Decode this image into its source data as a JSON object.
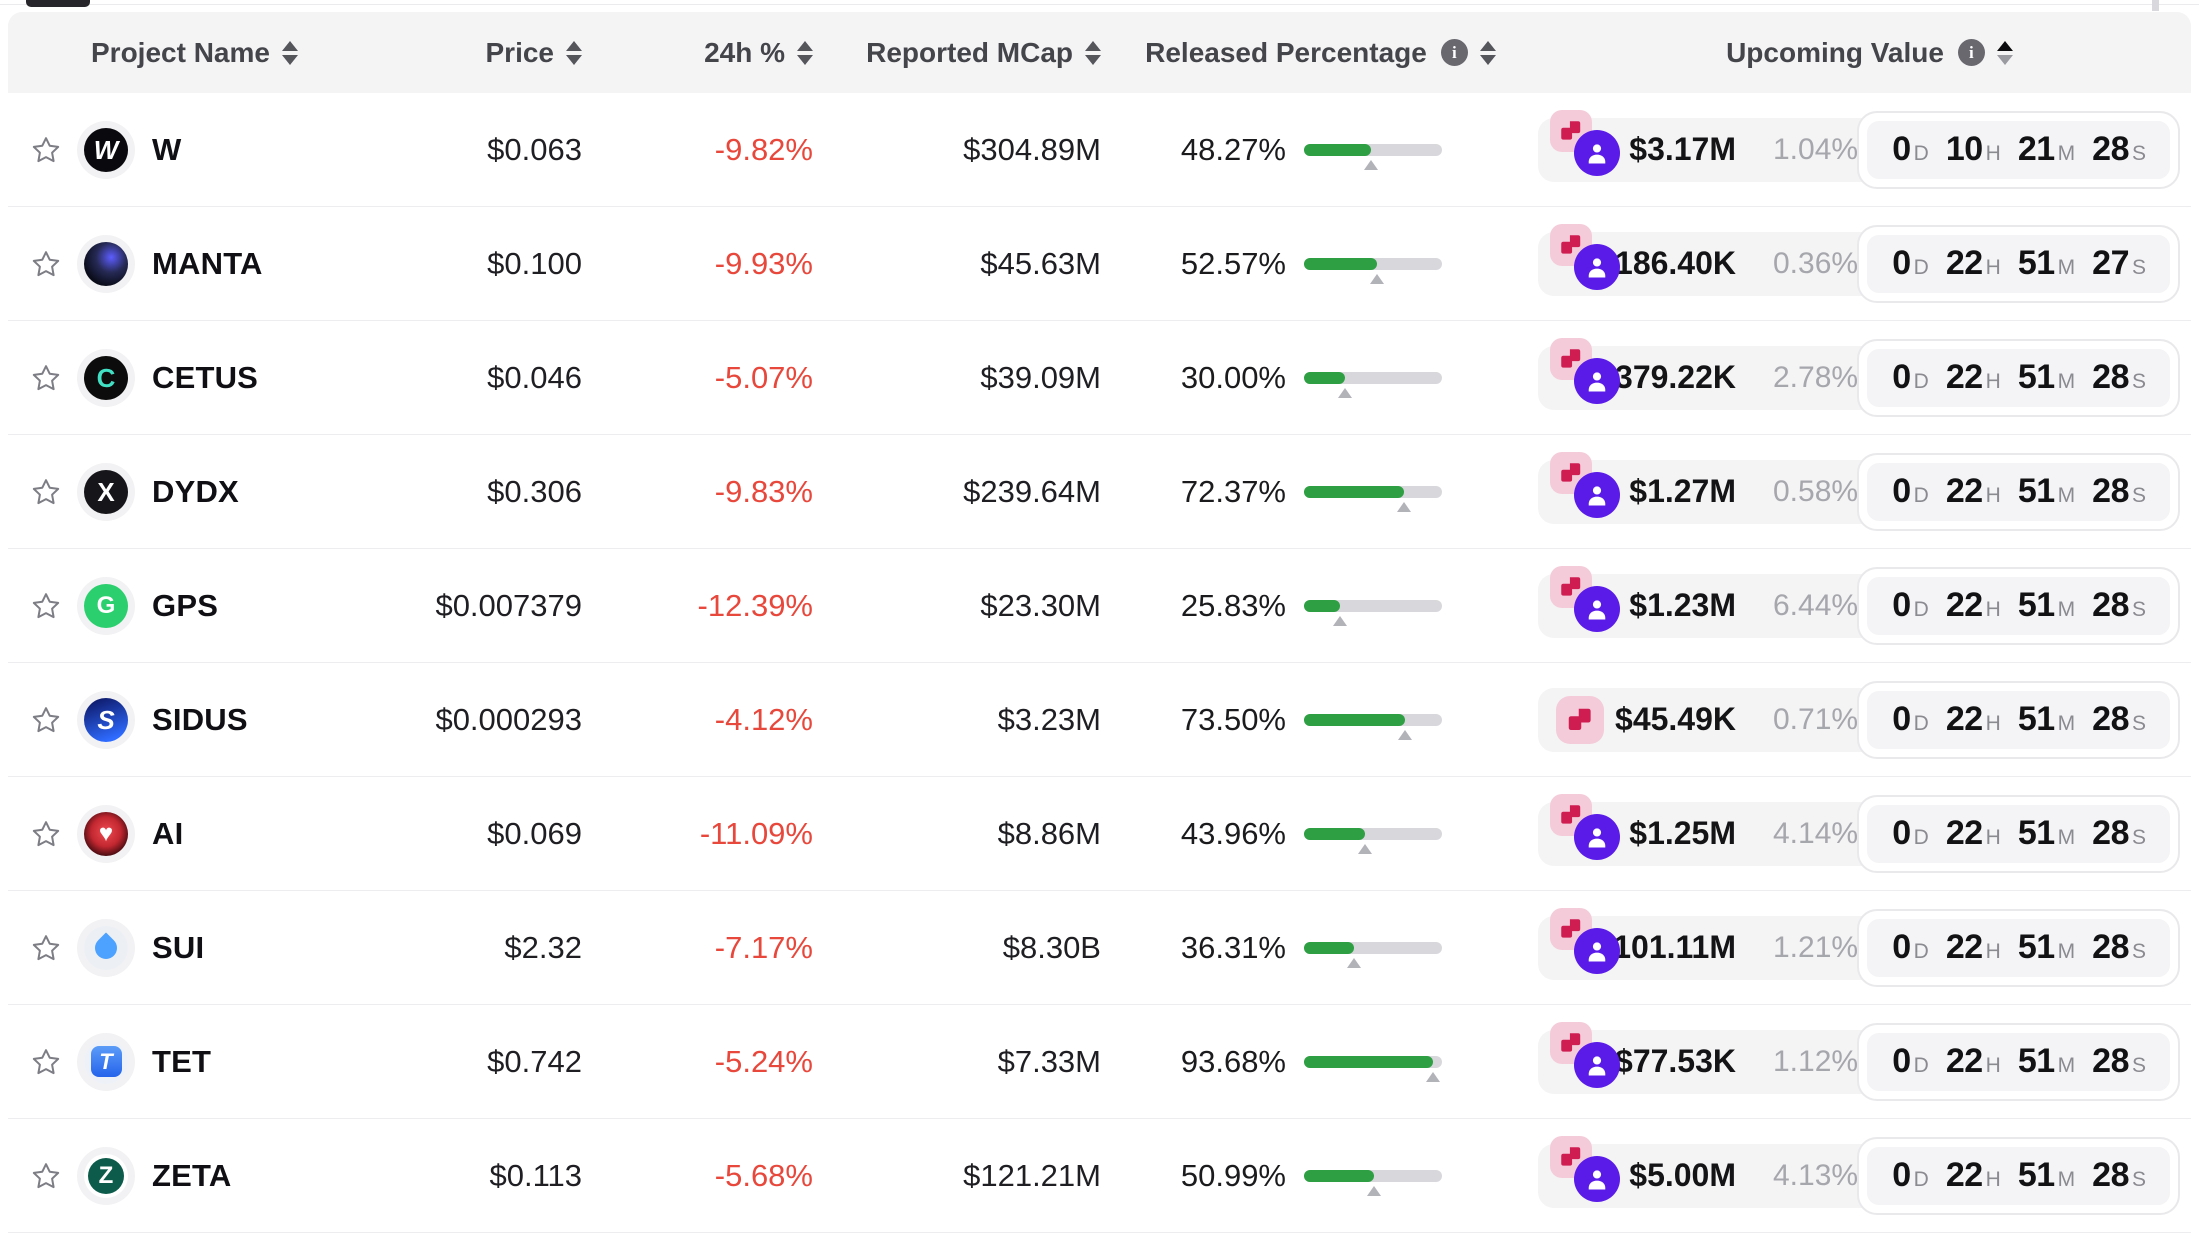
{
  "colors": {
    "negative": "#e8483c",
    "progress_green": "#2ea043",
    "header_bg": "#f4f4f5",
    "cell_bg": "#f4f4f5",
    "badge_pink_bg": "#f3cbd9",
    "badge_pink_glyph": "#cf1d52",
    "badge_purple": "#5a1be9",
    "muted_text": "#a6a6ad"
  },
  "table": {
    "columns": [
      {
        "key": "name",
        "label": "Project Name",
        "sortable": true
      },
      {
        "key": "price",
        "label": "Price",
        "sortable": true
      },
      {
        "key": "chg",
        "label": "24h %",
        "sortable": true
      },
      {
        "key": "mcap",
        "label": "Reported MCap",
        "sortable": true
      },
      {
        "key": "released",
        "label": "Released Percentage",
        "info": true,
        "sortable": true
      },
      {
        "key": "upcoming",
        "label": "Upcoming Value",
        "info": true,
        "sortable": true,
        "sort": "asc"
      }
    ],
    "countdown_units": {
      "d": "D",
      "h": "H",
      "m": "M",
      "s": "S"
    },
    "rows": [
      {
        "name": "W",
        "price": "$0.063",
        "chg": "-9.82%",
        "mcap": "$304.89M",
        "released": {
          "label": "48.27%",
          "pct": 48.27
        },
        "upcoming": {
          "value": "$3.17M",
          "pct": "1.04%",
          "icons": [
            "unlock-steps",
            "person"
          ],
          "countdown": {
            "d": "0",
            "h": "10",
            "m": "21",
            "s": "28"
          }
        },
        "icon": {
          "name": "w-token-icon",
          "shape": "plain",
          "bg": "#0a0a0e",
          "fg": "#ffffff",
          "text": "W",
          "italic": true,
          "fs": 26
        }
      },
      {
        "name": "MANTA",
        "price": "$0.100",
        "chg": "-9.93%",
        "mcap": "$45.63M",
        "released": {
          "label": "52.57%",
          "pct": 52.57
        },
        "upcoming": {
          "value": "$186.40K",
          "pct": "0.36%",
          "icons": [
            "unlock-steps",
            "person"
          ],
          "countdown": {
            "d": "0",
            "h": "22",
            "m": "51",
            "s": "27"
          }
        },
        "icon": {
          "name": "manta-token-icon",
          "shape": "plain",
          "bg": "radial-gradient(circle at 62% 35%, #5d5dff 0%, #262a55 38%, #0b0d1b 72%)",
          "fg": "#8ea0ff",
          "text": "",
          "fs": 22
        }
      },
      {
        "name": "CETUS",
        "price": "$0.046",
        "chg": "-5.07%",
        "mcap": "$39.09M",
        "released": {
          "label": "30.00%",
          "pct": 30.0
        },
        "upcoming": {
          "value": "$379.22K",
          "pct": "2.78%",
          "icons": [
            "unlock-steps",
            "person"
          ],
          "countdown": {
            "d": "0",
            "h": "22",
            "m": "51",
            "s": "28"
          }
        },
        "icon": {
          "name": "cetus-token-icon",
          "shape": "plain",
          "bg": "#0c0c0c",
          "fg": "#41dfc4",
          "text": "C",
          "fs": 26
        }
      },
      {
        "name": "DYDX",
        "price": "$0.306",
        "chg": "-9.83%",
        "mcap": "$239.64M",
        "released": {
          "label": "72.37%",
          "pct": 72.37
        },
        "upcoming": {
          "value": "$1.27M",
          "pct": "0.58%",
          "icons": [
            "unlock-steps",
            "person"
          ],
          "countdown": {
            "d": "0",
            "h": "22",
            "m": "51",
            "s": "28"
          }
        },
        "icon": {
          "name": "dydx-token-icon",
          "shape": "plain",
          "bg": "#15151a",
          "fg": "#ffffff",
          "text": "X",
          "fs": 26
        }
      },
      {
        "name": "GPS",
        "price": "$0.007379",
        "chg": "-12.39%",
        "mcap": "$23.30M",
        "released": {
          "label": "25.83%",
          "pct": 25.83
        },
        "upcoming": {
          "value": "$1.23M",
          "pct": "6.44%",
          "icons": [
            "unlock-steps",
            "person"
          ],
          "countdown": {
            "d": "0",
            "h": "22",
            "m": "51",
            "s": "28"
          }
        },
        "icon": {
          "name": "gps-token-icon",
          "shape": "plain",
          "bg": "#2bcf6e",
          "fg": "#ffffff",
          "text": "G",
          "fs": 24
        }
      },
      {
        "name": "SIDUS",
        "price": "$0.000293",
        "chg": "-4.12%",
        "mcap": "$3.23M",
        "released": {
          "label": "73.50%",
          "pct": 73.5
        },
        "upcoming": {
          "value": "$45.49K",
          "pct": "0.71%",
          "icons": [
            "unlock-steps"
          ],
          "countdown": {
            "d": "0",
            "h": "22",
            "m": "51",
            "s": "28"
          }
        },
        "icon": {
          "name": "sidus-token-icon",
          "shape": "plain",
          "bg": "linear-gradient(160deg,#0f1c6e 10%,#2e6bff 85%)",
          "fg": "#ffffff",
          "text": "S",
          "italic": true,
          "fs": 26
        }
      },
      {
        "name": "AI",
        "price": "$0.069",
        "chg": "-11.09%",
        "mcap": "$8.86M",
        "released": {
          "label": "43.96%",
          "pct": 43.96
        },
        "upcoming": {
          "value": "$1.25M",
          "pct": "4.14%",
          "icons": [
            "unlock-steps",
            "person"
          ],
          "countdown": {
            "d": "0",
            "h": "22",
            "m": "51",
            "s": "28"
          }
        },
        "icon": {
          "name": "ai-token-icon",
          "shape": "plain",
          "bg": "radial-gradient(circle at 50% 45%, #ef4b52 0%, #c22730 45%, #30070c 80%, #000 96%)",
          "fg": "#ffffff",
          "text": "♥",
          "fs": 24
        }
      },
      {
        "name": "SUI",
        "price": "$2.32",
        "chg": "-7.17%",
        "mcap": "$8.30B",
        "released": {
          "label": "36.31%",
          "pct": 36.31
        },
        "upcoming": {
          "value": "$101.11M",
          "pct": "1.21%",
          "icons": [
            "unlock-steps",
            "person"
          ],
          "countdown": {
            "d": "0",
            "h": "22",
            "m": "51",
            "s": "28"
          }
        },
        "icon": {
          "name": "sui-token-icon",
          "shape": "drop",
          "bg": "#ecf0f4",
          "fg": "#4da2ff"
        }
      },
      {
        "name": "TET",
        "price": "$0.742",
        "chg": "-5.24%",
        "mcap": "$7.33M",
        "released": {
          "label": "93.68%",
          "pct": 93.68
        },
        "upcoming": {
          "value": "$77.53K",
          "pct": "1.12%",
          "icons": [
            "unlock-steps",
            "person"
          ],
          "countdown": {
            "d": "0",
            "h": "22",
            "m": "51",
            "s": "28"
          }
        },
        "icon": {
          "name": "tet-token-icon",
          "shape": "square",
          "bg": "#eef2f8",
          "inner": "linear-gradient(180deg,#5b9cf8,#2563eb)",
          "fg": "#ffffff",
          "text": "T",
          "fs": 22,
          "italic": true
        }
      },
      {
        "name": "ZETA",
        "price": "$0.113",
        "chg": "-5.68%",
        "mcap": "$121.21M",
        "released": {
          "label": "50.99%",
          "pct": 50.99
        },
        "upcoming": {
          "value": "$5.00M",
          "pct": "4.13%",
          "icons": [
            "unlock-steps",
            "person"
          ],
          "countdown": {
            "d": "0",
            "h": "22",
            "m": "51",
            "s": "28"
          }
        },
        "icon": {
          "name": "zeta-token-icon",
          "shape": "ring",
          "bg": "#ffffff",
          "inner": "#0d5c4b",
          "fg": "#ffffff",
          "text": "Z",
          "fs": 24
        }
      }
    ]
  }
}
